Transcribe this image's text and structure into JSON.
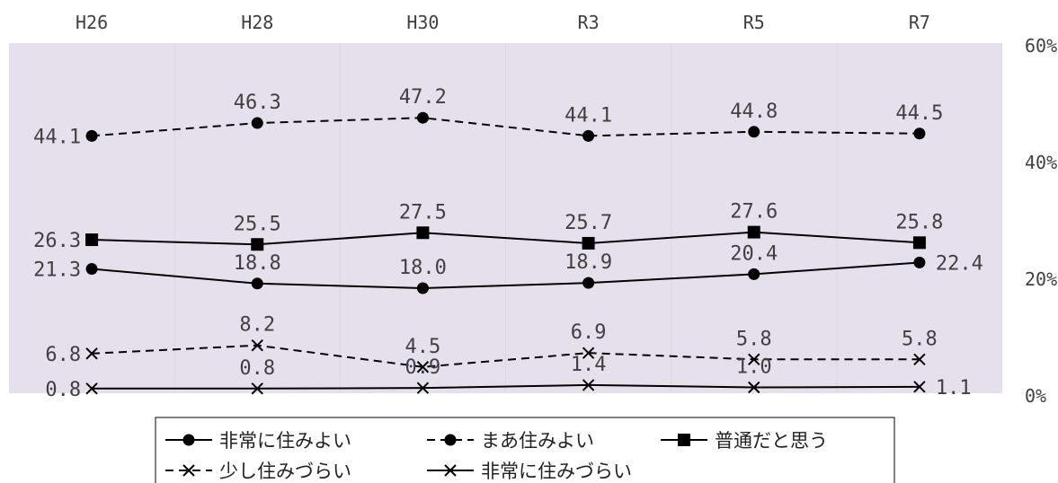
{
  "chart_data": {
    "type": "line",
    "categories": [
      "H26",
      "H28",
      "H30",
      "R3",
      "R5",
      "R7"
    ],
    "y_axis": {
      "ticks": [
        "0%",
        "20%",
        "40%",
        "60%"
      ],
      "ylim": [
        0,
        60
      ],
      "position": "right"
    },
    "series": [
      {
        "name": "非常に住みよい",
        "values": [
          21.3,
          18.8,
          18.0,
          18.9,
          20.4,
          22.4
        ],
        "line": "solid",
        "marker": "circle",
        "labels": [
          "21.3",
          "18.8",
          "18.0",
          "18.9",
          "20.4",
          "22.4"
        ]
      },
      {
        "name": "まあ住みよい",
        "values": [
          44.1,
          46.3,
          47.2,
          44.1,
          44.8,
          44.5
        ],
        "line": "dashed",
        "marker": "circle",
        "labels": [
          "44.1",
          "46.3",
          "47.2",
          "44.1",
          "44.8",
          "44.5"
        ]
      },
      {
        "name": "普通だと思う",
        "values": [
          26.3,
          25.5,
          27.5,
          25.7,
          27.6,
          25.8
        ],
        "line": "solid",
        "marker": "square",
        "labels": [
          "26.3",
          "25.5",
          "27.5",
          "25.7",
          "27.6",
          "25.8"
        ]
      },
      {
        "name": "少し住みづらい",
        "values": [
          6.8,
          8.2,
          4.5,
          6.9,
          5.8,
          5.8
        ],
        "line": "dashed",
        "marker": "x",
        "labels": [
          "6.8",
          "8.2",
          "4.5",
          "6.9",
          "5.8",
          "5.8"
        ]
      },
      {
        "name": "非常に住みづらい",
        "values": [
          0.8,
          0.8,
          0.9,
          1.4,
          1.0,
          1.1
        ],
        "line": "solid",
        "marker": "x",
        "labels": [
          "0.8",
          "0.8",
          "0.9",
          "1.4",
          "1.0",
          "1.1"
        ]
      }
    ],
    "legend": {
      "placement": "bottom"
    },
    "plot_background": "#e6e0ec",
    "line_color": "#000000",
    "grid": true
  }
}
